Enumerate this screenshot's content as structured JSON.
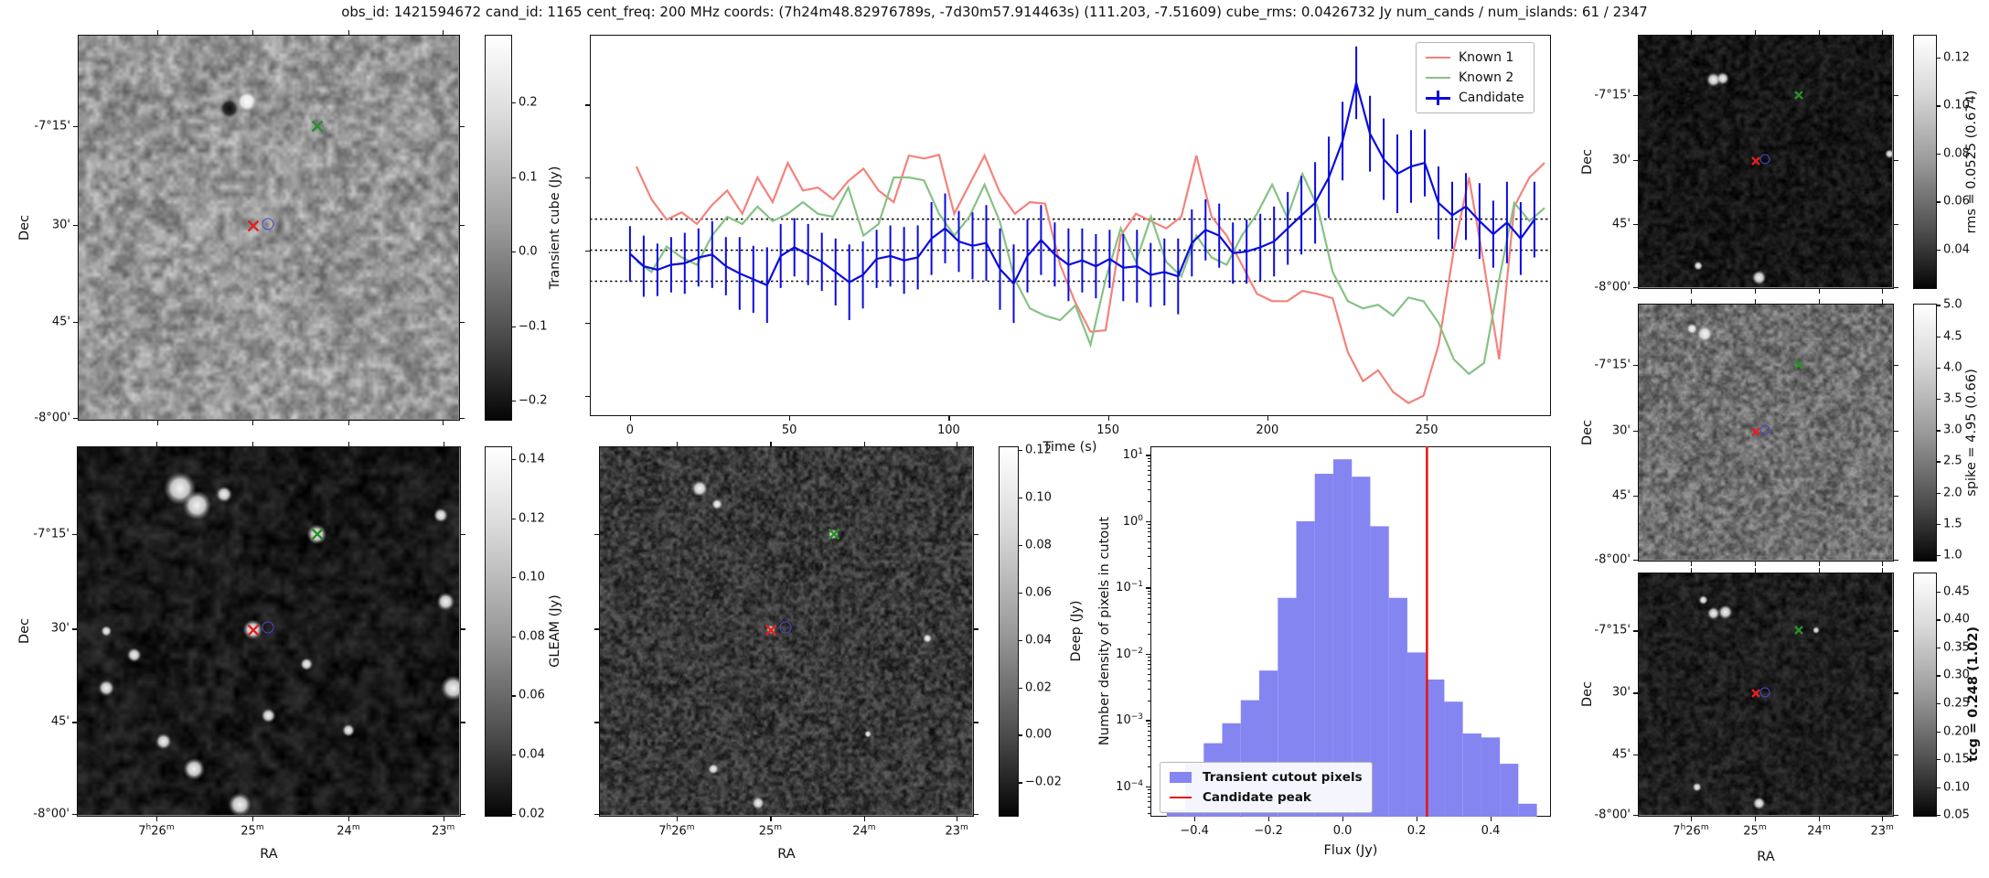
{
  "title": "obs_id: 1421594672 cand_id: 1165 cent_freq: 200 MHz coords: (7h24m48.82976789s, -7d30m57.914463s) (111.203, -7.51609) cube_rms: 0.0426732 Jy num_cands / num_islands: 61 / 2347",
  "axes": {
    "dec_label": "Dec",
    "ra_label": "RA",
    "dec_ticks": [
      "-7°15'",
      "30'",
      "45'",
      "-8°00'"
    ],
    "ra_ticks": [
      "7^h26^m",
      "25^m",
      "24^m",
      "23^m"
    ]
  },
  "markers": [
    {
      "name": "known2-position-marker",
      "shape": "x",
      "color": "#2a8f2a",
      "fx": 0.627,
      "fy": 0.237
    },
    {
      "name": "known1-position-marker",
      "shape": "x",
      "color": "#e32020",
      "fx": 0.459,
      "fy": 0.496
    },
    {
      "name": "candidate-position-marker",
      "shape": "circle",
      "color": "#4747cf",
      "fx": 0.498,
      "fy": 0.49
    }
  ],
  "panels": {
    "transient": {
      "colorbar_label": "Transient cube (Jy)",
      "cb_ticks": [
        "0.2",
        "0.1",
        "0.0",
        "−0.1",
        "−0.2"
      ],
      "cb_tick_values": [
        0.2,
        0.1,
        0.0,
        -0.1,
        -0.2
      ],
      "vmin": -0.227,
      "vmax": 0.291
    },
    "gleam": {
      "colorbar_label": "GLEAM (Jy)",
      "cb_ticks": [
        "0.14",
        "0.12",
        "0.10",
        "0.08",
        "0.06",
        "0.04",
        "0.02"
      ],
      "cb_tick_values": [
        0.14,
        0.12,
        0.1,
        0.08,
        0.06,
        0.04,
        0.02
      ],
      "vmin": 0.019,
      "vmax": 0.1443
    },
    "deep": {
      "colorbar_label": "Deep (Jy)",
      "cb_ticks": [
        "0.12",
        "0.10",
        "0.08",
        "0.06",
        "0.04",
        "0.02",
        "0.00",
        "−0.02"
      ],
      "cb_tick_values": [
        0.12,
        0.1,
        0.08,
        0.06,
        0.04,
        0.02,
        0.0,
        -0.02
      ],
      "vmin": -0.0345,
      "vmax": 0.1215
    },
    "rms": {
      "colorbar_label": "rms = 0.0525 (0.674)",
      "cb_ticks": [
        "0.12",
        "0.10",
        "0.08",
        "0.06",
        "0.04"
      ],
      "cb_tick_values": [
        0.12,
        0.1,
        0.08,
        0.06,
        0.04
      ],
      "vmin": 0.0235,
      "vmax": 0.1295
    },
    "spike": {
      "colorbar_label": "spike = 4.95 (0.66)",
      "cb_ticks": [
        "5.0",
        "4.5",
        "4.0",
        "3.5",
        "3.0",
        "2.5",
        "2.0",
        "1.5",
        "1.0"
      ],
      "cb_tick_values": [
        5.0,
        4.5,
        4.0,
        3.5,
        3.0,
        2.5,
        2.0,
        1.5,
        1.0
      ],
      "vmin": 0.9,
      "vmax": 5.02
    },
    "tcg": {
      "colorbar_label": "tcg = 0.248 (1.02)",
      "cb_ticks": [
        "0.45",
        "0.40",
        "0.35",
        "0.30",
        "0.25",
        "0.20",
        "0.15",
        "0.10",
        "0.05"
      ],
      "cb_tick_values": [
        0.45,
        0.4,
        0.35,
        0.3,
        0.25,
        0.2,
        0.15,
        0.1,
        0.05
      ],
      "vmin": 0.047,
      "vmax": 0.484
    }
  },
  "chart_data": [
    {
      "type": "line",
      "title": "",
      "xlabel": "Time (s)",
      "ylabel": "Transient cube (Jy)",
      "xlim": [
        -12.6,
        289
      ],
      "ylim": [
        -0.228,
        0.296
      ],
      "hlines": [
        0.0427,
        0.0,
        -0.0427
      ],
      "hline_style": "dotted",
      "xticks": [
        0,
        50,
        100,
        150,
        200,
        250
      ],
      "yticks": [
        0.2,
        0.1,
        0.0,
        -0.1,
        -0.2
      ],
      "legend_position": "upper right",
      "series": [
        {
          "name": "Known 1",
          "color": "#f4827b",
          "x": [
            2,
            6.75,
            11.5,
            16.25,
            21,
            25.75,
            30.5,
            35.25,
            40,
            44.75,
            49.5,
            54.25,
            59,
            63.75,
            68.5,
            73.25,
            78,
            82.75,
            87.5,
            92.25,
            97,
            101.75,
            106.5,
            111.25,
            116,
            120.75,
            125.5,
            130.25,
            135,
            139.75,
            144.5,
            149.25,
            154,
            158.75,
            163.5,
            168.25,
            173,
            177.75,
            182.5,
            187.25,
            192,
            196.75,
            201.5,
            206.25,
            211,
            215.75,
            220.5,
            225.25,
            230,
            234.75,
            239.5,
            244.25,
            249,
            253.75,
            258.5,
            263.25,
            268,
            272.75,
            277.5,
            282.25,
            287
          ],
          "y": [
            0.115,
            0.07,
            0.042,
            0.052,
            0.036,
            0.062,
            0.082,
            0.05,
            0.1,
            0.066,
            0.12,
            0.082,
            0.086,
            0.07,
            0.095,
            0.112,
            0.082,
            0.066,
            0.13,
            0.126,
            0.131,
            0.05,
            0.09,
            0.13,
            0.08,
            0.05,
            0.066,
            0.064,
            -0.02,
            -0.072,
            -0.112,
            -0.11,
            0.02,
            0.05,
            0.04,
            0.03,
            0.046,
            0.13,
            0.046,
            0.02,
            -0.02,
            -0.06,
            -0.07,
            -0.07,
            -0.056,
            -0.06,
            -0.066,
            -0.14,
            -0.18,
            -0.165,
            -0.195,
            -0.21,
            -0.2,
            -0.13,
            0.0,
            0.1,
            -0.02,
            -0.15,
            0.06,
            0.1,
            0.12
          ]
        },
        {
          "name": "Known 2",
          "color": "#85c285",
          "x": [
            2,
            6.75,
            11.5,
            16.25,
            21,
            25.75,
            30.5,
            35.25,
            40,
            44.75,
            49.5,
            54.25,
            59,
            63.75,
            68.5,
            73.25,
            78,
            82.75,
            87.5,
            92.25,
            97,
            101.75,
            106.5,
            111.25,
            116,
            120.75,
            125.5,
            130.25,
            135,
            139.75,
            144.5,
            149.25,
            154,
            158.75,
            163.5,
            168.25,
            173,
            177.75,
            182.5,
            187.25,
            192,
            196.75,
            201.5,
            206.25,
            211,
            215.75,
            220.5,
            225.25,
            230,
            234.75,
            239.5,
            244.25,
            249,
            253.75,
            258.5,
            263.25,
            268,
            272.75,
            277.5,
            282.25,
            287
          ],
          "y": [
            -0.015,
            -0.03,
            0.005,
            -0.01,
            -0.02,
            0.02,
            0.046,
            0.036,
            0.06,
            0.04,
            0.05,
            0.066,
            0.05,
            0.046,
            0.086,
            0.02,
            0.036,
            0.1,
            0.1,
            0.096,
            0.05,
            0.02,
            0.046,
            0.09,
            0.04,
            -0.04,
            -0.08,
            -0.09,
            -0.096,
            -0.076,
            -0.13,
            -0.04,
            0.03,
            -0.016,
            0.046,
            -0.016,
            -0.036,
            0.02,
            -0.01,
            -0.02,
            0.02,
            0.05,
            0.09,
            0.045,
            0.105,
            0.06,
            -0.03,
            -0.07,
            -0.08,
            -0.075,
            -0.09,
            -0.065,
            -0.07,
            -0.1,
            -0.15,
            -0.17,
            -0.155,
            -0.04,
            0.065,
            0.04,
            0.058
          ]
        },
        {
          "name": "Candidate",
          "color": "#0b0bdf",
          "x": [
            0,
            4.3,
            8.6,
            12.9,
            17.2,
            21.5,
            25.8,
            30.1,
            34.4,
            38.7,
            43,
            47.3,
            51.6,
            55.9,
            60.2,
            64.5,
            68.8,
            73.1,
            77.4,
            81.7,
            86,
            90.3,
            94.6,
            98.9,
            103.2,
            107.5,
            111.8,
            116.1,
            120.4,
            124.7,
            129,
            133.3,
            137.6,
            141.9,
            146.2,
            150.5,
            154.8,
            159.1,
            163.4,
            167.7,
            172,
            176.3,
            180.6,
            184.9,
            189.2,
            193.5,
            197.8,
            202.1,
            206.4,
            210.7,
            215,
            219.3,
            223.6,
            227.9,
            232.2,
            236.5,
            240.8,
            245.1,
            249.4,
            253.7,
            258,
            262.3,
            266.6,
            270.9,
            275.2,
            279.5,
            283.8
          ],
          "y": [
            -0.005,
            -0.022,
            -0.027,
            -0.02,
            -0.018,
            -0.01,
            -0.006,
            -0.022,
            -0.032,
            -0.04,
            -0.048,
            -0.008,
            0.004,
            -0.006,
            -0.016,
            -0.03,
            -0.044,
            -0.034,
            -0.012,
            -0.008,
            -0.014,
            -0.01,
            0.016,
            0.03,
            0.012,
            0.006,
            0.01,
            -0.026,
            -0.046,
            -0.008,
            0.014,
            -0.006,
            -0.02,
            -0.014,
            -0.022,
            -0.012,
            -0.024,
            -0.022,
            -0.034,
            -0.03,
            -0.036,
            0.01,
            0.028,
            0.02,
            -0.004,
            -0.002,
            0.004,
            0.012,
            0.03,
            0.048,
            0.065,
            0.1,
            0.15,
            0.23,
            0.16,
            0.125,
            0.105,
            0.115,
            0.12,
            0.065,
            0.048,
            0.06,
            0.04,
            0.022,
            0.038,
            0.016,
            0.042
          ],
          "yerr": [
            0.038,
            0.042,
            0.036,
            0.038,
            0.042,
            0.04,
            0.046,
            0.04,
            0.05,
            0.046,
            0.052,
            0.044,
            0.04,
            0.042,
            0.04,
            0.046,
            0.052,
            0.046,
            0.04,
            0.042,
            0.046,
            0.044,
            0.05,
            0.048,
            0.042,
            0.046,
            0.052,
            0.056,
            0.054,
            0.05,
            0.048,
            0.044,
            0.05,
            0.044,
            0.044,
            0.04,
            0.046,
            0.05,
            0.044,
            0.046,
            0.052,
            0.046,
            0.042,
            0.044,
            0.042,
            0.044,
            0.046,
            0.048,
            0.05,
            0.054,
            0.056,
            0.056,
            0.054,
            0.05,
            0.052,
            0.056,
            0.054,
            0.05,
            0.046,
            0.05,
            0.046,
            0.046,
            0.052,
            0.046,
            0.056,
            0.05,
            0.052
          ]
        }
      ]
    },
    {
      "type": "bar",
      "xlabel": "Flux (Jy)",
      "ylabel": "Number density of pixels in cutout",
      "yscale": "log",
      "xlim": [
        -0.519,
        0.563
      ],
      "ylim": [
        3.5e-05,
        13.5
      ],
      "xticks": [
        -0.4,
        -0.2,
        0.0,
        0.2,
        0.4
      ],
      "ytick_exponents": [
        1,
        0,
        -1,
        -2,
        -3,
        -4
      ],
      "bin_width": 0.05,
      "bin_left_edges": [
        -0.475,
        -0.425,
        -0.375,
        -0.325,
        -0.275,
        -0.225,
        -0.175,
        -0.125,
        -0.075,
        -0.025,
        0.025,
        0.075,
        0.125,
        0.175,
        0.225,
        0.275,
        0.325,
        0.375,
        0.425,
        0.475
      ],
      "densities": [
        4.5e-05,
        0.00022,
        0.00045,
        0.0009,
        0.002,
        0.0056,
        0.07,
        1.0,
        5.2,
        8.6,
        4.7,
        0.84,
        0.07,
        0.0105,
        0.0041,
        0.0019,
        0.00063,
        0.00055,
        0.00022,
        5.5e-05
      ],
      "candidate_peak_flux": 0.228,
      "bar_color": "#8585f2",
      "peak_line_color": "#e61212",
      "legend": [
        {
          "label": "Transient cutout pixels",
          "swatch": "patch"
        },
        {
          "label": "Candidate peak",
          "swatch": "line"
        }
      ]
    }
  ]
}
